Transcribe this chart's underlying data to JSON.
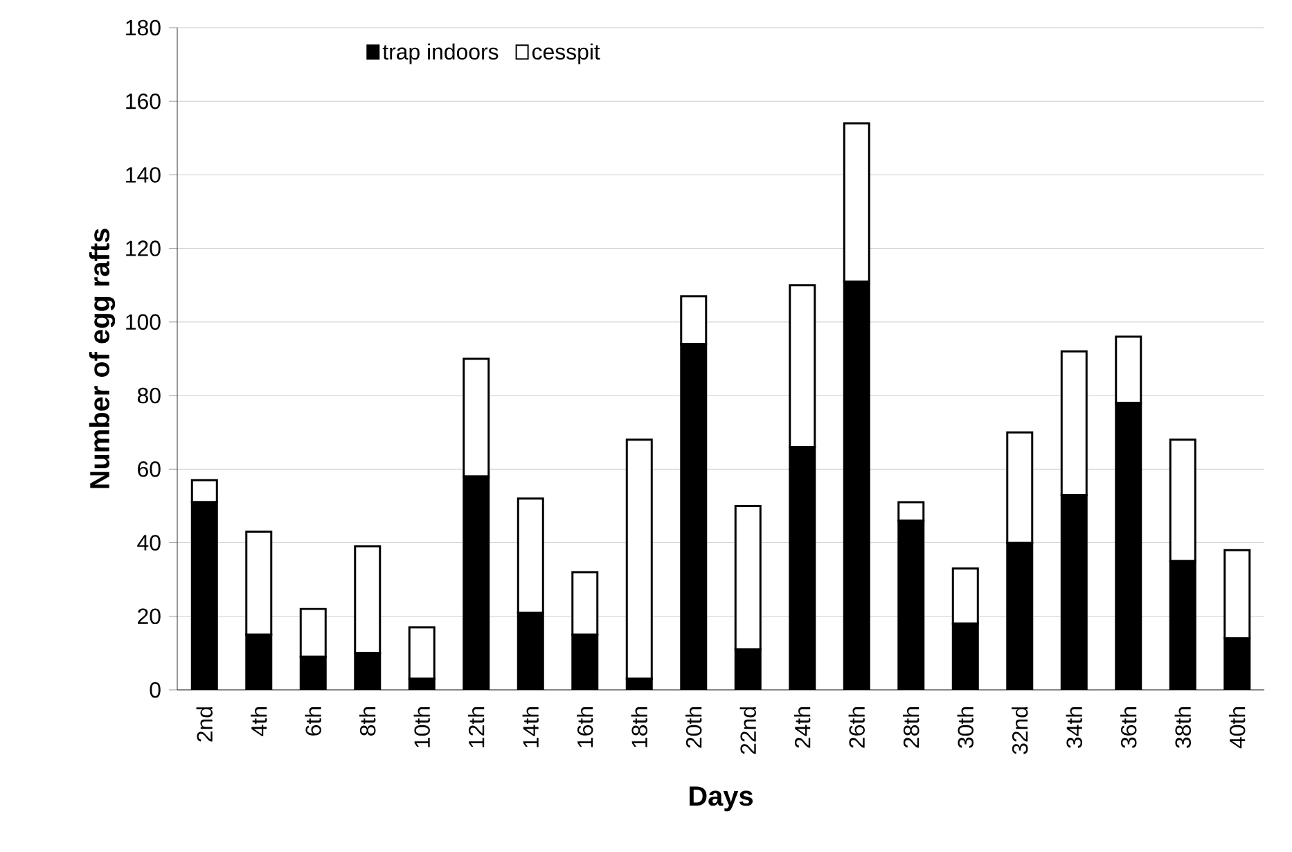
{
  "chart_data": {
    "type": "bar",
    "stacked": true,
    "xlabel": "Days",
    "ylabel": "Number of egg rafts",
    "categories": [
      "2nd",
      "4th",
      "6th",
      "8th",
      "10th",
      "12th",
      "14th",
      "16th",
      "18th",
      "20th",
      "22nd",
      "24th",
      "26th",
      "28th",
      "30th",
      "32nd",
      "34th",
      "36th",
      "38th",
      "40th"
    ],
    "series": [
      {
        "name": "trap indoors",
        "color": "#000000",
        "values": [
          51,
          15,
          9,
          10,
          3,
          58,
          21,
          15,
          3,
          94,
          11,
          66,
          111,
          46,
          18,
          40,
          53,
          78,
          35,
          14
        ]
      },
      {
        "name": "cesspit",
        "color": "#ffffff",
        "values": [
          6,
          28,
          13,
          29,
          14,
          32,
          31,
          17,
          65,
          13,
          39,
          44,
          43,
          5,
          15,
          30,
          39,
          18,
          33,
          24
        ]
      }
    ],
    "ylim": [
      0,
      180
    ],
    "yticks": [
      0,
      20,
      40,
      60,
      80,
      100,
      120,
      140,
      160,
      180
    ],
    "grid": "y",
    "legend": "top left"
  }
}
